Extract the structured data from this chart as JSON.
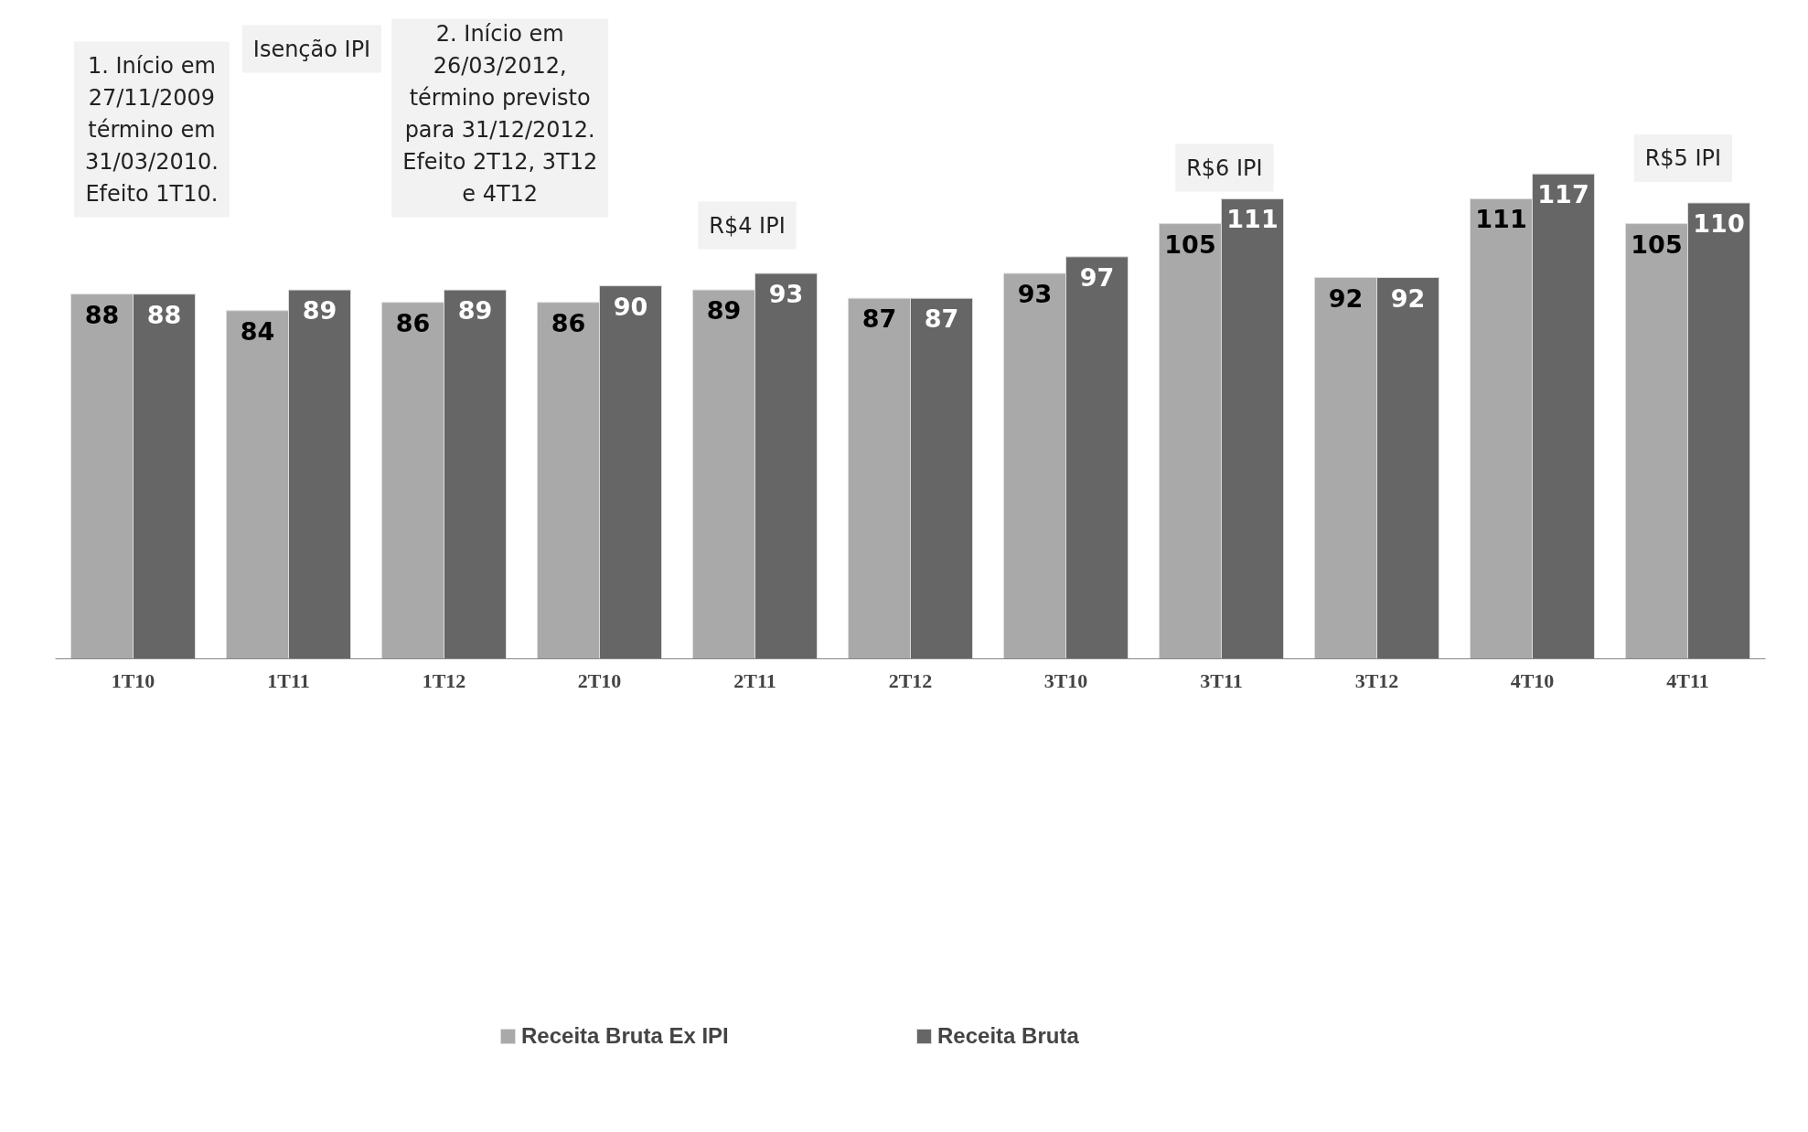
{
  "chart_data": {
    "type": "bar",
    "categories": [
      "1T10",
      "1T11",
      "1T12",
      "2T10",
      "2T11",
      "2T12",
      "3T10",
      "3T11",
      "3T12",
      "4T10",
      "4T11"
    ],
    "series": [
      {
        "name": "Receita Bruta Ex IPI",
        "color": "#a9a9a9",
        "values": [
          88,
          84,
          86,
          86,
          89,
          87,
          93,
          105,
          92,
          111,
          105
        ]
      },
      {
        "name": "Receita Bruta",
        "color": "#666666",
        "values": [
          88,
          89,
          89,
          90,
          93,
          87,
          97,
          111,
          92,
          117,
          110
        ]
      }
    ],
    "tick_labels": "x",
    "data_labels": true,
    "grid": false,
    "legend": "bottom",
    "annotations": [
      "Isenção IPI",
      "1. Início em\n27/11/2009\ntérmino em\n31/03/2010.\nEfeito 1T10.",
      "2. Início em\n26/03/2012,\ntérmino previsto\npara 31/12/2012.\nEfeito 2T12, 3T12\ne 4T12",
      "R$4 IPI",
      "R$6 IPI",
      "R$5 IPI"
    ]
  }
}
